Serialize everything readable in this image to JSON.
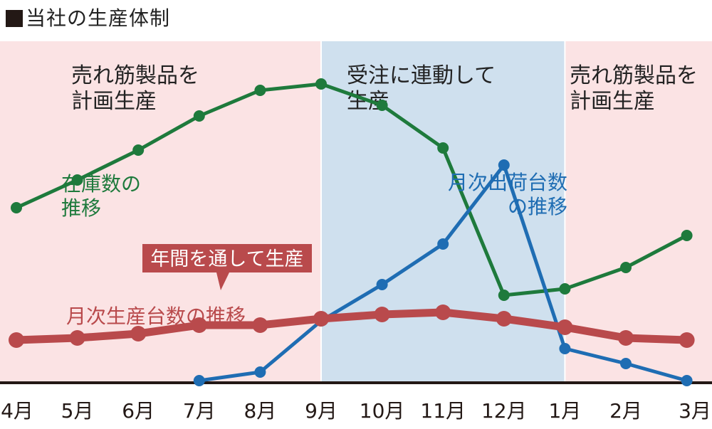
{
  "title": "当社の生産体制",
  "chart_data": {
    "type": "line",
    "categories": [
      "4月",
      "5月",
      "6月",
      "7月",
      "8月",
      "9月",
      "10月",
      "11月",
      "12月",
      "1月",
      "2月",
      "3月"
    ],
    "series": [
      {
        "name": "在庫数の推移",
        "values": [
          82,
          95,
          109,
          125,
          137,
          140,
          130,
          110,
          41,
          44,
          54,
          69
        ],
        "color": "#1e7a3c"
      },
      {
        "name": "月次出荷台数の推移",
        "values": [
          null,
          null,
          null,
          1,
          5,
          29,
          46,
          65,
          102,
          16,
          9,
          1
        ],
        "color": "#1f6db3"
      },
      {
        "name": "月次生産台数の推移",
        "values": [
          20,
          21,
          23,
          27,
          27,
          30,
          32,
          33,
          30,
          26,
          21,
          20
        ],
        "color": "#b94a4c"
      }
    ],
    "ylim": [
      0,
      160
    ],
    "regions": [
      {
        "text": "売れ筋製品を\n計画生産",
        "from": "4月",
        "to": "9月",
        "color": "#fbe3e4"
      },
      {
        "text": "受注に連動して\n生産",
        "from": "9月",
        "to": "1月",
        "color": "#cfe0ee"
      },
      {
        "text": "売れ筋製品を\n計画生産",
        "from": "1月",
        "to": "3月",
        "color": "#fbe3e4"
      }
    ],
    "callout": "年間を通して生産"
  }
}
